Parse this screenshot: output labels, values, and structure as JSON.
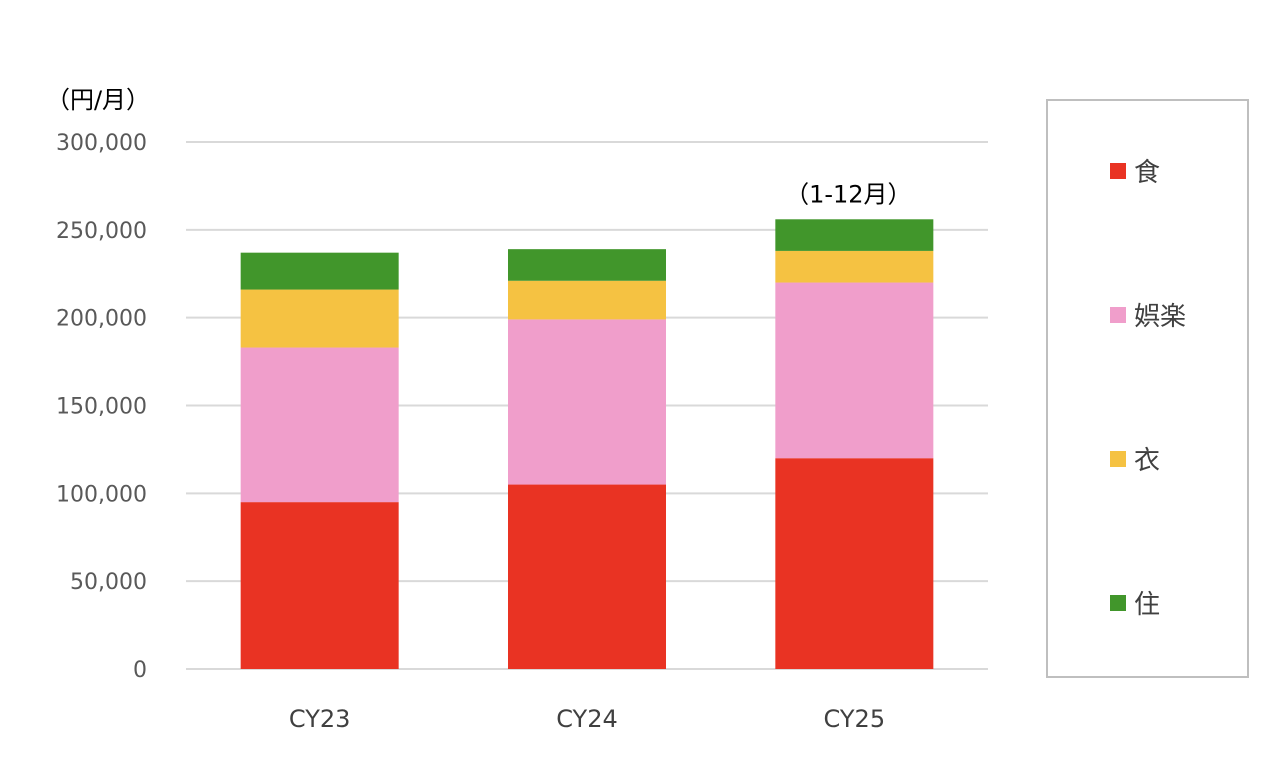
{
  "chart_data": {
    "type": "bar",
    "stacked": true,
    "unit_label": "（円/月）",
    "categories": [
      "CY23",
      "CY24",
      "CY25"
    ],
    "series": [
      {
        "name": "食",
        "color": "#E93323",
        "values": [
          95000,
          105000,
          120000
        ]
      },
      {
        "name": "娯楽",
        "color": "#F09ECB",
        "values": [
          88000,
          94000,
          100000
        ]
      },
      {
        "name": "衣",
        "color": "#F5C242",
        "values": [
          33000,
          22000,
          18000
        ]
      },
      {
        "name": "住",
        "color": "#41962B",
        "values": [
          21000,
          18000,
          18000
        ]
      }
    ],
    "ylim": [
      0,
      300000
    ],
    "yticks": [
      "0",
      "50,000",
      "100,000",
      "150,000",
      "200,000",
      "250,000",
      "300,000"
    ],
    "grid": true,
    "legend_position": "right",
    "annotations": [
      {
        "category": "CY25",
        "text": "（1-12月）"
      }
    ]
  },
  "colors": {
    "gridline": "#D9D9D9",
    "legend_border": "#BFBFBF"
  }
}
